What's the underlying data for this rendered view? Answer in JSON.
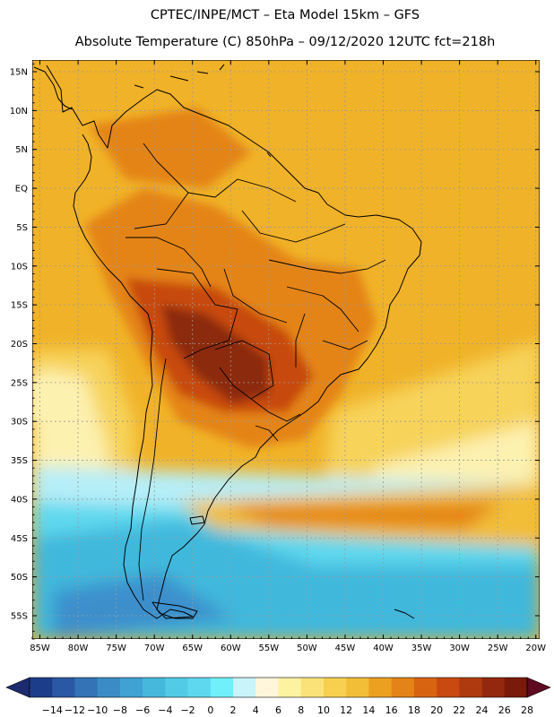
{
  "header": {
    "line1": "CPTEC/INPE/MCT –  Eta Model 15km – GFS",
    "line2": "Absolute Temperature (C) 850hPa – 09/12/2020 12UTC fct=218h"
  },
  "map": {
    "lat_labels": [
      "15N",
      "10N",
      "5N",
      "EQ",
      "5S",
      "10S",
      "15S",
      "20S",
      "25S",
      "30S",
      "35S",
      "40S",
      "45S",
      "50S",
      "55S"
    ],
    "lon_labels": [
      "85W",
      "80W",
      "75W",
      "70W",
      "65W",
      "60W",
      "55W",
      "50W",
      "45W",
      "40W",
      "35W",
      "30W",
      "25W",
      "20W"
    ],
    "lat_range": [
      -58,
      16.5
    ],
    "lon_range": [
      -86,
      -19.5
    ],
    "colors": {
      "warm_hot": "#e8a020",
      "warm": "#f0b228",
      "hot": "#e07a18",
      "very_hot": "#c8541a",
      "extreme": "#8c2a10",
      "mild": "#f7d35a",
      "pale": "#fdf1b0",
      "cool": "#b6eef8",
      "cold": "#5ed8ee",
      "colder": "#3fb8dc",
      "coldest": "#3d8fcc"
    }
  },
  "colorbar": {
    "labels": [
      "-14",
      "-12",
      "-10",
      "-8",
      "-6",
      "-4",
      "-2",
      "0",
      "2",
      "4",
      "6",
      "8",
      "10",
      "12",
      "14",
      "16",
      "18",
      "20",
      "22",
      "24",
      "26",
      "28"
    ],
    "colors": [
      "#1c3e8a",
      "#2a58a4",
      "#3474b6",
      "#3b8cc6",
      "#3fa2d2",
      "#46b8dc",
      "#52cbe6",
      "#5ed8ee",
      "#70f0fa",
      "#c8f4fa",
      "#fff6dc",
      "#fdf2a0",
      "#fae278",
      "#f7d050",
      "#f2be38",
      "#eca020",
      "#e48418",
      "#d86412",
      "#c84a10",
      "#b03a10",
      "#93280e",
      "#7a1a0a"
    ],
    "cap_left": "#1c2a70",
    "cap_right": "#5e0a20"
  }
}
